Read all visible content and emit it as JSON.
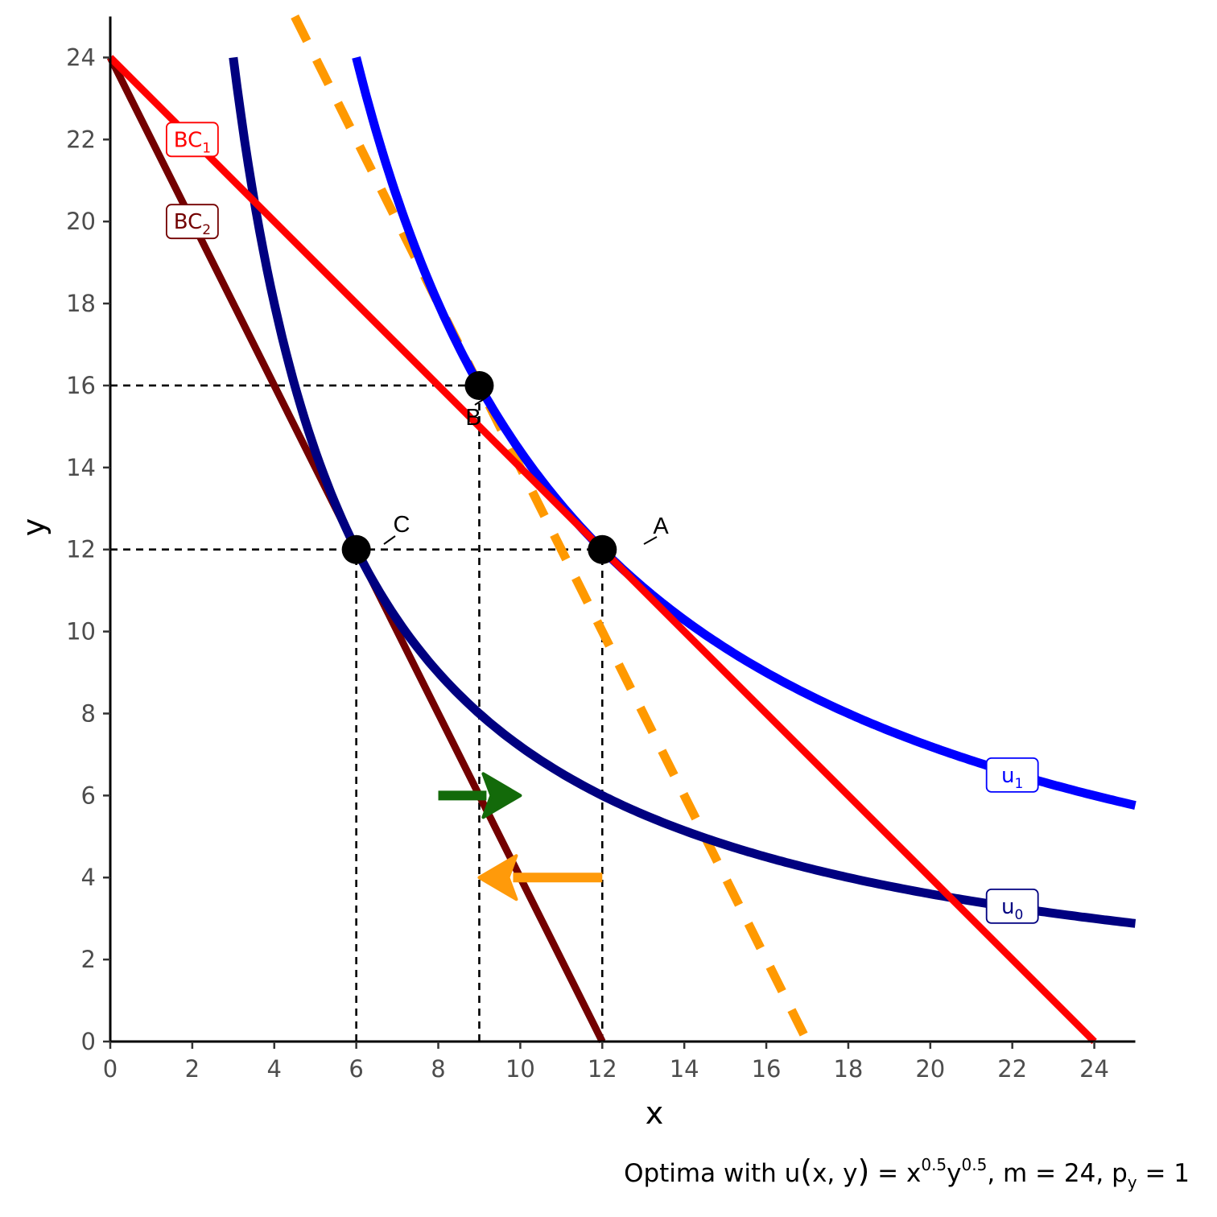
{
  "chart_data": {
    "type": "line",
    "xlabel": "x",
    "ylabel": "y",
    "xlim": [
      0,
      25
    ],
    "ylim": [
      0,
      25
    ],
    "x_ticks": [
      0,
      2,
      4,
      6,
      8,
      10,
      12,
      14,
      16,
      18,
      20,
      22,
      24
    ],
    "y_ticks": [
      0,
      2,
      4,
      6,
      8,
      10,
      12,
      14,
      16,
      18,
      20,
      22,
      24
    ],
    "grid": false,
    "caption": {
      "main": "Optima with u",
      "paren_open": "(",
      "args": "x, y",
      "paren_close": ")",
      "eq": " = x",
      "exp1": "0.5",
      "y": "y",
      "exp2": "0.5",
      "rest": ", m = 24, p",
      "sub": "y",
      "tail": " = 1"
    },
    "series": [
      {
        "key": "bc1",
        "color": "#ff0000",
        "points": [
          [
            0,
            24
          ],
          [
            24,
            0
          ]
        ],
        "label": {
          "base": "BC",
          "sub": "1",
          "x": 2,
          "y": 22
        }
      },
      {
        "key": "bc2",
        "color": "#730000",
        "points": [
          [
            0,
            24
          ],
          [
            12,
            0
          ]
        ],
        "label": {
          "base": "BC",
          "sub": "2",
          "x": 2,
          "y": 20
        }
      },
      {
        "key": "u0",
        "color": "#000080",
        "utility": 72,
        "x_range": [
          3,
          25
        ],
        "label": {
          "base": "u",
          "sub": "0",
          "x": 22,
          "y": 3.3
        }
      },
      {
        "key": "u1",
        "color": "#0000ff",
        "utility": 144,
        "x_range": [
          6,
          25
        ],
        "label": {
          "base": "u",
          "sub": "1",
          "x": 22,
          "y": 6.5
        }
      },
      {
        "key": "compensated",
        "color": "#ff9900",
        "dashed": true,
        "points": [
          [
            4.5,
            25
          ],
          [
            17,
            0
          ]
        ]
      }
    ],
    "points": [
      {
        "name": "A",
        "x": 12,
        "y": 12
      },
      {
        "name": "B",
        "x": 9,
        "y": 16
      },
      {
        "name": "C",
        "x": 6,
        "y": 12
      }
    ],
    "guides": [
      {
        "from": [
          0,
          16
        ],
        "to": [
          9,
          16
        ]
      },
      {
        "from": [
          9,
          0
        ],
        "to": [
          9,
          16
        ]
      },
      {
        "from": [
          0,
          12
        ],
        "to": [
          12,
          12
        ]
      },
      {
        "from": [
          6,
          0
        ],
        "to": [
          6,
          12
        ]
      },
      {
        "from": [
          12,
          0
        ],
        "to": [
          12,
          12
        ]
      }
    ],
    "arrows": [
      {
        "key": "substitution-effect",
        "color": "#136a0a",
        "from": [
          8,
          6
        ],
        "to": [
          10,
          6
        ]
      },
      {
        "key": "income-effect",
        "color": "#ff9a0a",
        "from": [
          12,
          4
        ],
        "to": [
          9,
          4
        ]
      }
    ]
  }
}
